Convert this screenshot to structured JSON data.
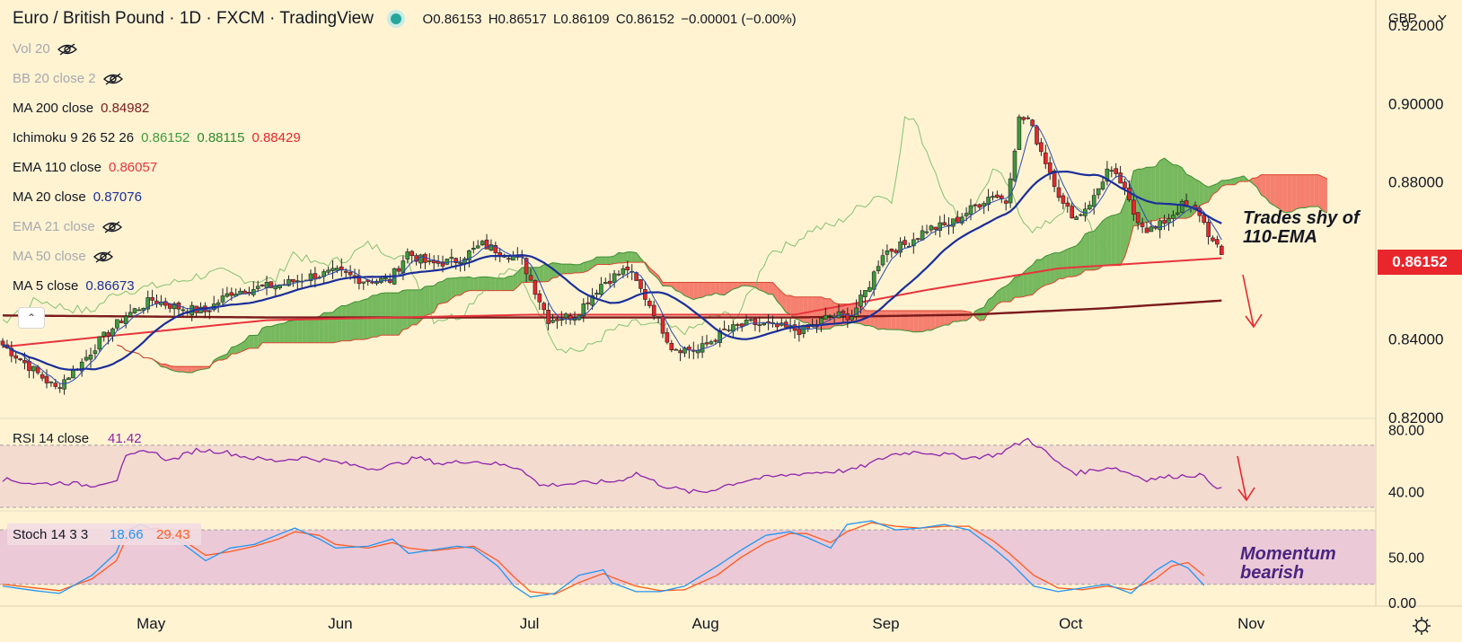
{
  "header": {
    "symbol": "Euro / British Pound · 1D · FXCM · TradingView",
    "open": "O0.86153",
    "high": "H0.86517",
    "low": "L0.86109",
    "close": "C0.86152",
    "change": "−0.00001 (−0.00%)"
  },
  "indicators": [
    {
      "name": "Vol 20",
      "value": "",
      "hidden": true
    },
    {
      "name": "BB 20 close 2",
      "value": "",
      "hidden": true
    },
    {
      "name": "MA 200 close",
      "value": "0.84982",
      "color": "#7a1a1a"
    },
    {
      "name": "Ichimoku 9 26 52 26",
      "values": [
        "0.86152",
        "0.88115",
        "0.88429"
      ],
      "colors": [
        "#3d9a3d",
        "#2e8b2e",
        "#e8262c"
      ]
    },
    {
      "name": "EMA 110 close",
      "value": "0.86057",
      "color": "#e8343c"
    },
    {
      "name": "MA 20 close",
      "value": "0.87076",
      "color": "#1a2e99"
    },
    {
      "name": "EMA 21 close",
      "value": "",
      "hidden": true
    },
    {
      "name": "MA 50 close",
      "value": "",
      "hidden": true
    },
    {
      "name": "MA 5 close",
      "value": "0.86673",
      "color": "#1a2e99"
    }
  ],
  "price_axis": {
    "currency": "GBP",
    "ticks": [
      "0.92000",
      "0.90000",
      "0.88000",
      "0.84000",
      "0.82000"
    ],
    "last_price": "0.86152"
  },
  "rsi": {
    "label": "RSI 14 close",
    "value": "41.42",
    "ticks": [
      "80.00",
      "40.00"
    ]
  },
  "stoch": {
    "label": "Stoch 14 3 3",
    "k": "18.66",
    "d": "29.43",
    "ticks": [
      "50.00",
      "0.00"
    ]
  },
  "time_axis": {
    "months": [
      "May",
      "Jun",
      "Jul",
      "Aug",
      "Sep",
      "Oct",
      "Nov"
    ]
  },
  "annotations": {
    "main_line1": "Trades shy of",
    "main_line2": "110-EMA",
    "stoch_line1": "Momentum",
    "stoch_line2": "bearish"
  },
  "colors": {
    "up": "#3d9a3d",
    "down": "#e8262c",
    "background": "#fff3d2",
    "rsi_line": "#8e24aa",
    "stoch_k": "#2196f3",
    "stoch_d": "#ff5a1f"
  },
  "chart_data": {
    "type": "candlestick",
    "y_range_main": [
      0.82,
      0.925
    ],
    "months_at_index": {
      "May": 28,
      "Jun": 71,
      "Jul": 114,
      "Aug": 154,
      "Sep": 195,
      "Oct": 237,
      "Nov": 278
    },
    "close_anchors": [
      [
        0,
        0.8385
      ],
      [
        6,
        0.833
      ],
      [
        12,
        0.8275
      ],
      [
        18,
        0.834
      ],
      [
        22,
        0.8395
      ],
      [
        28,
        0.846
      ],
      [
        34,
        0.85
      ],
      [
        40,
        0.848
      ],
      [
        46,
        0.847
      ],
      [
        52,
        0.852
      ],
      [
        58,
        0.853
      ],
      [
        64,
        0.854
      ],
      [
        70,
        0.856
      ],
      [
        76,
        0.857
      ],
      [
        82,
        0.855
      ],
      [
        88,
        0.855
      ],
      [
        92,
        0.862
      ],
      [
        97,
        0.859
      ],
      [
        103,
        0.86
      ],
      [
        109,
        0.864
      ],
      [
        114,
        0.862
      ],
      [
        118,
        0.86
      ],
      [
        124,
        0.845
      ],
      [
        130,
        0.846
      ],
      [
        136,
        0.854
      ],
      [
        142,
        0.858
      ],
      [
        148,
        0.847
      ],
      [
        152,
        0.838
      ],
      [
        158,
        0.837
      ],
      [
        164,
        0.842
      ],
      [
        170,
        0.844
      ],
      [
        176,
        0.843
      ],
      [
        182,
        0.842
      ],
      [
        188,
        0.846
      ],
      [
        193,
        0.846
      ],
      [
        197,
        0.854
      ],
      [
        200,
        0.862
      ],
      [
        205,
        0.864
      ],
      [
        210,
        0.868
      ],
      [
        215,
        0.869
      ],
      [
        220,
        0.873
      ],
      [
        225,
        0.877
      ],
      [
        228,
        0.875
      ],
      [
        231,
        0.896
      ],
      [
        233,
        0.896
      ],
      [
        236,
        0.888
      ],
      [
        239,
        0.88
      ],
      [
        241,
        0.874
      ],
      [
        244,
        0.871
      ],
      [
        248,
        0.876
      ],
      [
        251,
        0.883
      ],
      [
        254,
        0.88
      ],
      [
        257,
        0.872
      ],
      [
        260,
        0.868
      ],
      [
        262,
        0.868
      ],
      [
        265,
        0.871
      ],
      [
        268,
        0.874
      ],
      [
        272,
        0.872
      ],
      [
        275,
        0.8645
      ],
      [
        277,
        0.8615
      ]
    ],
    "ema110_anchors": [
      [
        0,
        0.838
      ],
      [
        60,
        0.8448
      ],
      [
        120,
        0.8462
      ],
      [
        180,
        0.8462
      ],
      [
        210,
        0.8525
      ],
      [
        240,
        0.858
      ],
      [
        277,
        0.8606
      ]
    ],
    "ma200_anchors": [
      [
        0,
        0.846
      ],
      [
        60,
        0.8455
      ],
      [
        120,
        0.8455
      ],
      [
        180,
        0.8455
      ],
      [
        220,
        0.8462
      ],
      [
        250,
        0.8478
      ],
      [
        277,
        0.8498
      ]
    ],
    "rsi_anchors": [
      [
        0,
        48
      ],
      [
        8,
        45
      ],
      [
        14,
        46
      ],
      [
        20,
        44
      ],
      [
        26,
        48
      ],
      [
        28,
        62
      ],
      [
        33,
        67
      ],
      [
        38,
        60
      ],
      [
        44,
        67
      ],
      [
        50,
        66
      ],
      [
        56,
        62
      ],
      [
        62,
        60
      ],
      [
        68,
        62
      ],
      [
        74,
        60
      ],
      [
        78,
        58
      ],
      [
        84,
        55
      ],
      [
        90,
        58
      ],
      [
        94,
        62
      ],
      [
        100,
        58
      ],
      [
        106,
        60
      ],
      [
        112,
        58
      ],
      [
        118,
        55
      ],
      [
        122,
        44
      ],
      [
        128,
        45
      ],
      [
        134,
        46
      ],
      [
        140,
        47
      ],
      [
        144,
        52
      ],
      [
        150,
        44
      ],
      [
        156,
        40
      ],
      [
        160,
        40
      ],
      [
        164,
        44
      ],
      [
        170,
        48
      ],
      [
        176,
        50
      ],
      [
        182,
        52
      ],
      [
        188,
        53
      ],
      [
        193,
        54
      ],
      [
        197,
        58
      ],
      [
        202,
        64
      ],
      [
        208,
        66
      ],
      [
        214,
        64
      ],
      [
        220,
        62
      ],
      [
        226,
        64
      ],
      [
        230,
        70
      ],
      [
        233,
        74
      ],
      [
        236,
        68
      ],
      [
        240,
        58
      ],
      [
        244,
        52
      ],
      [
        248,
        54
      ],
      [
        252,
        56
      ],
      [
        256,
        52
      ],
      [
        260,
        48
      ],
      [
        266,
        50
      ],
      [
        272,
        51
      ],
      [
        277,
        41.42
      ]
    ],
    "stoch_k_anchors": [
      [
        0,
        18
      ],
      [
        8,
        13
      ],
      [
        14,
        10
      ],
      [
        22,
        30
      ],
      [
        28,
        55
      ],
      [
        30,
        78
      ],
      [
        34,
        86
      ],
      [
        38,
        78
      ],
      [
        44,
        66
      ],
      [
        50,
        46
      ],
      [
        56,
        60
      ],
      [
        62,
        64
      ],
      [
        68,
        75
      ],
      [
        72,
        82
      ],
      [
        78,
        70
      ],
      [
        82,
        60
      ],
      [
        90,
        62
      ],
      [
        96,
        70
      ],
      [
        100,
        54
      ],
      [
        106,
        58
      ],
      [
        112,
        62
      ],
      [
        116,
        60
      ],
      [
        122,
        40
      ],
      [
        126,
        18
      ],
      [
        130,
        6
      ],
      [
        136,
        10
      ],
      [
        142,
        30
      ],
      [
        148,
        36
      ],
      [
        150,
        22
      ],
      [
        156,
        12
      ],
      [
        162,
        12
      ],
      [
        168,
        18
      ],
      [
        176,
        40
      ],
      [
        182,
        58
      ],
      [
        188,
        74
      ],
      [
        194,
        78
      ],
      [
        198,
        72
      ],
      [
        204,
        60
      ],
      [
        208,
        86
      ],
      [
        214,
        90
      ],
      [
        220,
        80
      ],
      [
        226,
        82
      ],
      [
        232,
        86
      ],
      [
        238,
        80
      ],
      [
        244,
        60
      ],
      [
        248,
        45
      ],
      [
        254,
        18
      ],
      [
        260,
        12
      ],
      [
        266,
        16
      ],
      [
        272,
        20
      ],
      [
        278,
        10
      ],
      [
        284,
        35
      ],
      [
        288,
        46
      ],
      [
        292,
        38
      ],
      [
        296,
        18.66
      ]
    ],
    "stoch_d_anchors": [
      [
        0,
        20
      ],
      [
        8,
        16
      ],
      [
        14,
        13
      ],
      [
        22,
        26
      ],
      [
        28,
        46
      ],
      [
        30,
        66
      ],
      [
        34,
        80
      ],
      [
        38,
        82
      ],
      [
        44,
        70
      ],
      [
        50,
        52
      ],
      [
        56,
        56
      ],
      [
        62,
        62
      ],
      [
        68,
        70
      ],
      [
        72,
        78
      ],
      [
        78,
        74
      ],
      [
        82,
        64
      ],
      [
        90,
        60
      ],
      [
        96,
        66
      ],
      [
        100,
        60
      ],
      [
        106,
        57
      ],
      [
        112,
        60
      ],
      [
        116,
        62
      ],
      [
        122,
        46
      ],
      [
        126,
        28
      ],
      [
        130,
        12
      ],
      [
        136,
        9
      ],
      [
        142,
        22
      ],
      [
        148,
        32
      ],
      [
        150,
        28
      ],
      [
        156,
        18
      ],
      [
        162,
        13
      ],
      [
        168,
        14
      ],
      [
        176,
        30
      ],
      [
        182,
        50
      ],
      [
        188,
        66
      ],
      [
        194,
        76
      ],
      [
        198,
        76
      ],
      [
        204,
        66
      ],
      [
        208,
        78
      ],
      [
        214,
        88
      ],
      [
        220,
        84
      ],
      [
        226,
        82
      ],
      [
        232,
        84
      ],
      [
        238,
        84
      ],
      [
        244,
        68
      ],
      [
        248,
        54
      ],
      [
        254,
        30
      ],
      [
        260,
        16
      ],
      [
        266,
        14
      ],
      [
        272,
        18
      ],
      [
        278,
        14
      ],
      [
        284,
        26
      ],
      [
        288,
        40
      ],
      [
        292,
        44
      ],
      [
        296,
        29.43
      ]
    ]
  }
}
